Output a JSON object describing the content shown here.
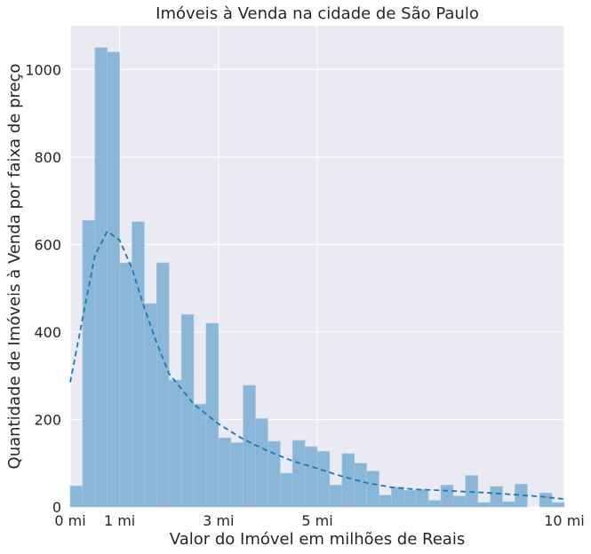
{
  "chart_data": {
    "type": "bar",
    "title": "Imóveis à Venda na cidade de São Paulo",
    "xlabel": "Valor do Imóvel em milhões de Reais",
    "ylabel": "Quantidade de Imóveis à Venda por faixa de preço",
    "xlim": [
      0,
      10
    ],
    "ylim": [
      0,
      1100
    ],
    "x_ticks": [
      {
        "value": 0,
        "label": "0 mi"
      },
      {
        "value": 1,
        "label": "1 mi"
      },
      {
        "value": 3,
        "label": "3 mi"
      },
      {
        "value": 5,
        "label": "5 mi"
      },
      {
        "value": 10,
        "label": "10 mi"
      }
    ],
    "y_ticks": [
      0,
      200,
      400,
      600,
      800,
      1000
    ],
    "bin_width": 0.25,
    "bins_start": 0,
    "histogram_values": [
      48,
      655,
      1050,
      1040,
      558,
      652,
      465,
      558,
      290,
      440,
      235,
      420,
      158,
      147,
      278,
      202,
      150,
      77,
      152,
      138,
      127,
      50,
      122,
      100,
      82,
      27,
      45,
      38,
      40,
      15,
      50,
      25,
      72,
      10,
      47,
      12,
      52,
      0,
      32,
      10,
      35
    ],
    "kde": {
      "x": [
        0,
        0.25,
        0.5,
        0.75,
        1.0,
        1.25,
        1.5,
        1.75,
        2.0,
        2.5,
        3.0,
        3.5,
        4.0,
        4.5,
        5.0,
        5.5,
        6.0,
        6.5,
        7.0,
        7.5,
        8.0,
        8.5,
        9.0,
        9.5,
        10.0
      ],
      "y": [
        285,
        430,
        575,
        630,
        610,
        545,
        455,
        375,
        305,
        235,
        190,
        155,
        128,
        105,
        88,
        70,
        55,
        45,
        40,
        38,
        35,
        32,
        28,
        24,
        18
      ]
    },
    "colors": {
      "background": "#eaeaf2",
      "bar_fill": "#7fb0d5",
      "bar_edge": "#a8c8e0",
      "kde_line": "#1f77b4",
      "grid": "#ffffff"
    },
    "grid": true
  }
}
